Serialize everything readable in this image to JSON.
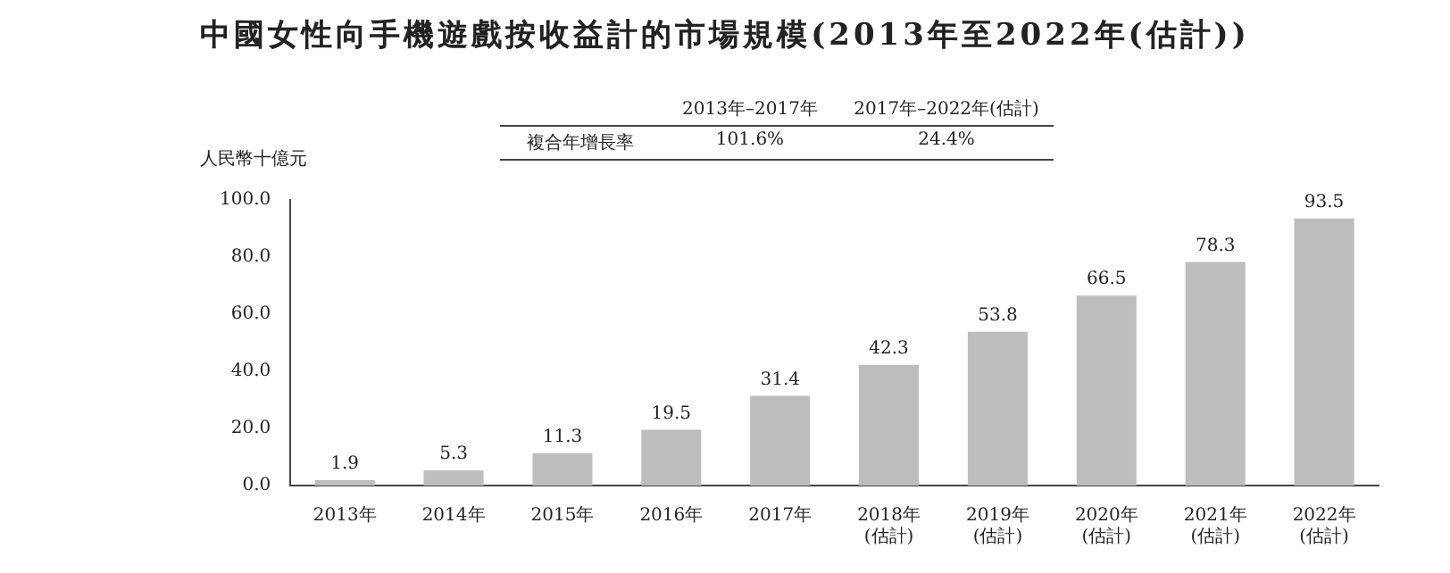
{
  "chart_data": {
    "type": "bar",
    "title": "中國女性向手機遊戲按收益計的市場規模(2013年至2022年(估計))",
    "ylabel": "人民幣十億元",
    "categories": [
      "2013年",
      "2014年",
      "2015年",
      "2016年",
      "2017年",
      "2018年\n(估計)",
      "2019年\n(估計)",
      "2020年\n(估計)",
      "2021年\n(估計)",
      "2022年\n(估計)"
    ],
    "values": [
      1.9,
      5.3,
      11.3,
      19.5,
      31.4,
      42.3,
      53.8,
      66.5,
      78.3,
      93.5
    ],
    "color": "#bdbdbd",
    "ylim": [
      0,
      100
    ],
    "yticks": [
      {
        "value": 0,
        "label": "0.0"
      },
      {
        "value": 20,
        "label": "20.0"
      },
      {
        "value": 40,
        "label": "40.0"
      },
      {
        "value": 60,
        "label": "60.0"
      },
      {
        "value": 80,
        "label": "80.0"
      },
      {
        "value": 100,
        "label": "100.0"
      }
    ],
    "grid": false,
    "data_labels": true,
    "annotations": [
      "2013年–2017年",
      "2017年–2022年(估計)",
      "複合年增長率",
      "101.6%",
      "24.4%"
    ]
  }
}
